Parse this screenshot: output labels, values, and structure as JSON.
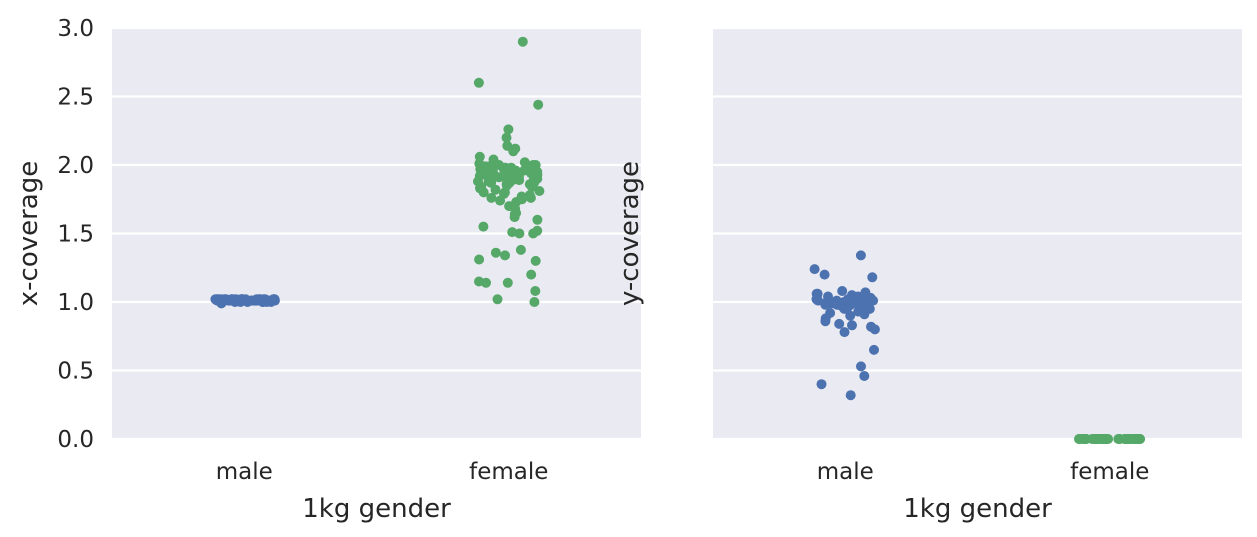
{
  "chart_data": [
    {
      "type": "scatter",
      "subtype": "strip",
      "xlabel": "1kg gender",
      "ylabel": "x-coverage",
      "categories": [
        "male",
        "female"
      ],
      "ylim": [
        0,
        3.0
      ],
      "yticks": [
        "0.0",
        "0.5",
        "1.0",
        "1.5",
        "2.0",
        "2.5",
        "3.0"
      ],
      "ytick_values": [
        0,
        0.5,
        1.0,
        1.5,
        2.0,
        2.5,
        3.0
      ],
      "show_yticklabels": true,
      "grid": true,
      "series": [
        {
          "category": "male",
          "color": "#4c72b0",
          "values": [
            1.01,
            1.02,
            1.02,
            1.01,
            1.0,
            1.02,
            1.01,
            1.02,
            1.01,
            1.02,
            1.01,
            1.0,
            1.02,
            1.01,
            1.02,
            1.01,
            1.02,
            1.01,
            1.02,
            1.0,
            1.01,
            1.02,
            1.01,
            1.02,
            1.01,
            1.02,
            1.0,
            1.01,
            1.02,
            1.01,
            1.02,
            1.01,
            1.02,
            1.01,
            1.0,
            1.02,
            1.01,
            1.02,
            1.01,
            1.02,
            0.99,
            1.01,
            1.02,
            1.01,
            1.02,
            1.01,
            1.02,
            1.01,
            1.0,
            1.02,
            1.01,
            1.02,
            1.01,
            1.02,
            1.01,
            1.02,
            1.0,
            1.01,
            1.02,
            1.01
          ]
        },
        {
          "category": "female",
          "color": "#55a868",
          "values": [
            2.9,
            2.6,
            2.44,
            2.26,
            2.2,
            2.14,
            2.12,
            2.1,
            2.06,
            2.04,
            2.02,
            2.01,
            2.0,
            2.0,
            1.99,
            1.99,
            1.98,
            1.98,
            1.97,
            1.97,
            1.96,
            1.96,
            1.95,
            1.95,
            1.94,
            1.94,
            1.93,
            1.93,
            1.92,
            1.92,
            1.91,
            1.91,
            1.9,
            1.9,
            1.89,
            1.89,
            1.88,
            1.88,
            1.87,
            1.87,
            1.86,
            1.86,
            1.85,
            1.84,
            1.84,
            1.83,
            1.82,
            1.81,
            1.8,
            1.8,
            1.79,
            1.78,
            1.77,
            1.76,
            1.76,
            1.75,
            1.74,
            1.73,
            1.7,
            1.68,
            1.65,
            1.64,
            1.62,
            1.6,
            1.55,
            1.52,
            1.51,
            1.5,
            1.5,
            1.38,
            1.36,
            1.34,
            1.31,
            1.3,
            1.2,
            1.15,
            1.14,
            1.14,
            1.08,
            1.02,
            1.0,
            1.98,
            1.96,
            1.95,
            1.99,
            2.01,
            1.97,
            1.93,
            1.9,
            1.92,
            1.94,
            1.96,
            1.98,
            2.0,
            1.95,
            1.91,
            1.89,
            1.87,
            1.97,
            1.99
          ]
        }
      ]
    },
    {
      "type": "scatter",
      "subtype": "strip",
      "xlabel": "1kg gender",
      "ylabel": "y-coverage",
      "categories": [
        "male",
        "female"
      ],
      "ylim": [
        0,
        3.0
      ],
      "ytick_values": [
        0,
        0.5,
        1.0,
        1.5,
        2.0,
        2.5,
        3.0
      ],
      "show_yticklabels": false,
      "grid": true,
      "series": [
        {
          "category": "male",
          "color": "#4c72b0",
          "values": [
            1.34,
            1.24,
            1.2,
            1.18,
            1.08,
            1.07,
            1.06,
            1.06,
            1.05,
            1.05,
            1.04,
            1.04,
            1.03,
            1.03,
            1.03,
            1.02,
            1.02,
            1.02,
            1.01,
            1.01,
            1.01,
            1.0,
            1.0,
            1.0,
            0.99,
            0.99,
            0.99,
            0.98,
            0.98,
            0.97,
            0.97,
            0.96,
            0.96,
            0.95,
            0.95,
            0.94,
            0.93,
            0.92,
            0.91,
            0.9,
            0.88,
            0.86,
            0.84,
            0.83,
            0.82,
            0.8,
            0.78,
            0.65,
            0.53,
            0.46,
            0.4,
            0.32,
            1.02,
            1.0,
            0.98,
            1.04,
            1.01,
            0.97,
            1.03,
            0.99
          ]
        },
        {
          "category": "female",
          "color": "#55a868",
          "values": [
            0.0,
            0.0,
            0.0,
            0.0,
            0.0,
            0.0,
            0.0,
            0.0,
            0.0,
            0.0,
            0.0,
            0.0,
            0.0,
            0.0,
            0.0,
            0.0,
            0.0,
            0.0,
            0.0,
            0.0,
            0.0,
            0.0,
            0.0,
            0.0,
            0.0,
            0.0,
            0.0,
            0.0,
            0.0,
            0.0,
            0.0,
            0.0,
            0.0,
            0.0,
            0.0,
            0.0,
            0.0,
            0.0,
            0.0,
            0.0,
            0.0,
            0.0,
            0.0,
            0.0,
            0.0,
            0.0,
            0.0,
            0.0,
            0.0,
            0.0
          ]
        }
      ]
    }
  ]
}
